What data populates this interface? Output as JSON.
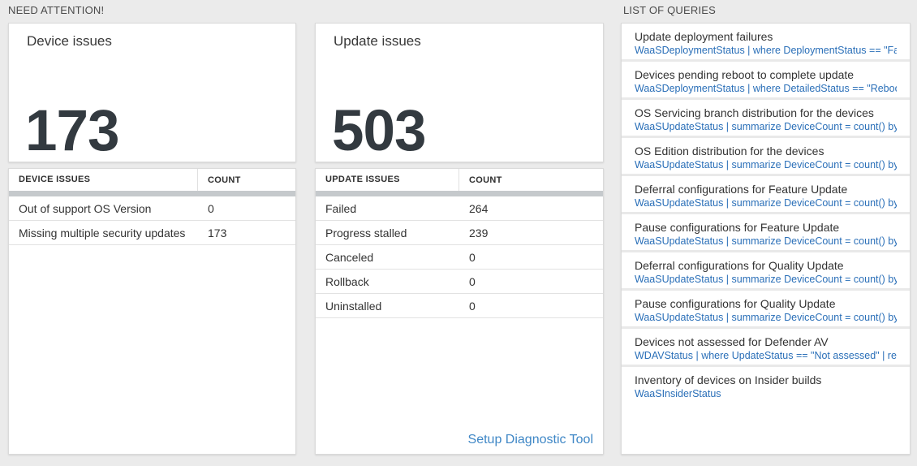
{
  "sections": {
    "need_attention": {
      "title": "NEED ATTENTION!"
    },
    "queries": {
      "title": "LIST OF QUERIES"
    }
  },
  "device_card": {
    "title": "Device issues",
    "count": "173"
  },
  "device_table": {
    "columns": [
      "DEVICE ISSUES",
      "COUNT"
    ],
    "rows": [
      {
        "name": "Out of support OS Version",
        "count": "0"
      },
      {
        "name": "Missing multiple security updates",
        "count": "173"
      }
    ]
  },
  "update_card": {
    "title": "Update issues",
    "count": "503"
  },
  "update_table": {
    "columns": [
      "UPDATE ISSUES",
      "COUNT"
    ],
    "rows": [
      {
        "name": "Failed",
        "count": "264"
      },
      {
        "name": "Progress stalled",
        "count": "239"
      },
      {
        "name": "Canceled",
        "count": "0"
      },
      {
        "name": "Rollback",
        "count": "0"
      },
      {
        "name": "Uninstalled",
        "count": "0"
      }
    ],
    "footer_link": "Setup Diagnostic Tool"
  },
  "query_list": {
    "items": [
      {
        "title": "Update deployment failures",
        "query": "WaaSDeploymentStatus | where DeploymentStatus == \"Failed\" |..."
      },
      {
        "title": "Devices pending reboot to complete update",
        "query": "WaaSDeploymentStatus | where DetailedStatus == \"Reboot pend..."
      },
      {
        "title": "OS Servicing branch distribution for the devices",
        "query": "WaaSUpdateStatus | summarize DeviceCount = count() by OSSer..."
      },
      {
        "title": "OS Edition distribution for the devices",
        "query": "WaaSUpdateStatus | summarize DeviceCount = count() by OSEdit..."
      },
      {
        "title": "Deferral configurations for Feature Update",
        "query": "WaaSUpdateStatus | summarize DeviceCount = count() by Featur..."
      },
      {
        "title": "Pause configurations for Feature Update",
        "query": "WaaSUpdateStatus | summarize DeviceCount = count() by Featur..."
      },
      {
        "title": "Deferral configurations for Quality Update",
        "query": "WaaSUpdateStatus | summarize DeviceCount = count() by Qualit..."
      },
      {
        "title": "Pause configurations for Quality Update",
        "query": "WaaSUpdateStatus | summarize DeviceCount = count() by Qualit..."
      },
      {
        "title": "Devices not assessed for Defender AV",
        "query": "WDAVStatus | where UpdateStatus == \"Not assessed\" | render ta..."
      },
      {
        "title": "Inventory of devices on Insider builds",
        "query": "WaaSInsiderStatus"
      }
    ]
  },
  "colors": {
    "background": "#ebebeb",
    "card": "#ffffff",
    "big_number": "#333a40",
    "query_link_blue": "#2a6fb8",
    "footer_link_blue": "#3f87c6",
    "header_bar_gray": "#c5c9cc"
  }
}
